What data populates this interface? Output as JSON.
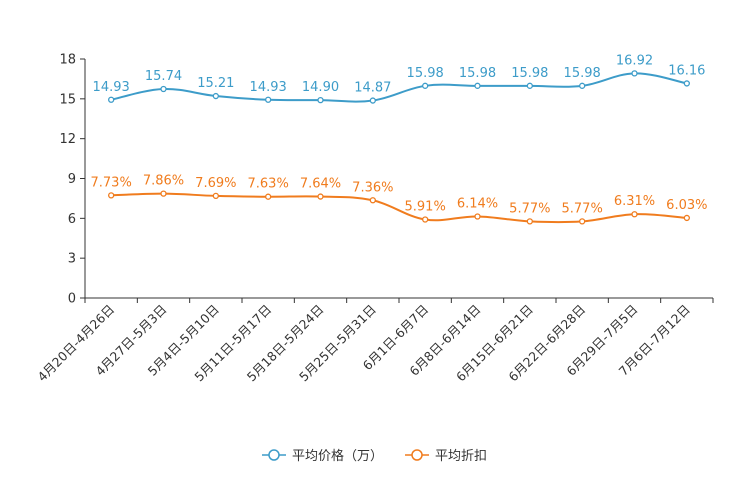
{
  "chart_data": {
    "type": "line",
    "title": "",
    "xlabel": "",
    "ylabel": "",
    "ylim": [
      0,
      18
    ],
    "yticks": [
      "0",
      "3",
      "6",
      "9",
      "12",
      "15",
      "18"
    ],
    "yticks_values": [
      0,
      3,
      6,
      9,
      12,
      15,
      18
    ],
    "categories": [
      "4月20日-4月26日",
      "4月27日-5月3日",
      "5月4日-5月10日",
      "5月11日-5月17日",
      "5月18日-5月24日",
      "5月25日-5月31日",
      "6月1日-6月7日",
      "6月8日-6月14日",
      "6月15日-6月21日",
      "6月22日-6月28日",
      "6月29日-7月5日",
      "7月6日-7月12日"
    ],
    "series": [
      {
        "name": "平均价格（万）",
        "color": "#3d9cc9",
        "values": [
          14.93,
          15.74,
          15.21,
          14.93,
          14.9,
          14.87,
          15.98,
          15.98,
          15.98,
          15.98,
          16.92,
          16.16
        ],
        "labels": [
          "14.93",
          "15.74",
          "15.21",
          "14.93",
          "14.90",
          "14.87",
          "15.98",
          "15.98",
          "15.98",
          "15.98",
          "16.92",
          "16.16"
        ]
      },
      {
        "name": "平均折扣",
        "color": "#f07c1e",
        "values": [
          7.73,
          7.86,
          7.69,
          7.63,
          7.64,
          7.36,
          5.91,
          6.14,
          5.77,
          5.77,
          6.31,
          6.03
        ],
        "labels": [
          "7.73%",
          "7.86%",
          "7.69%",
          "7.63%",
          "7.64%",
          "7.36%",
          "5.91%",
          "6.14%",
          "5.77%",
          "5.77%",
          "6.31%",
          "6.03%"
        ]
      }
    ],
    "legend_position": "bottom-center"
  }
}
